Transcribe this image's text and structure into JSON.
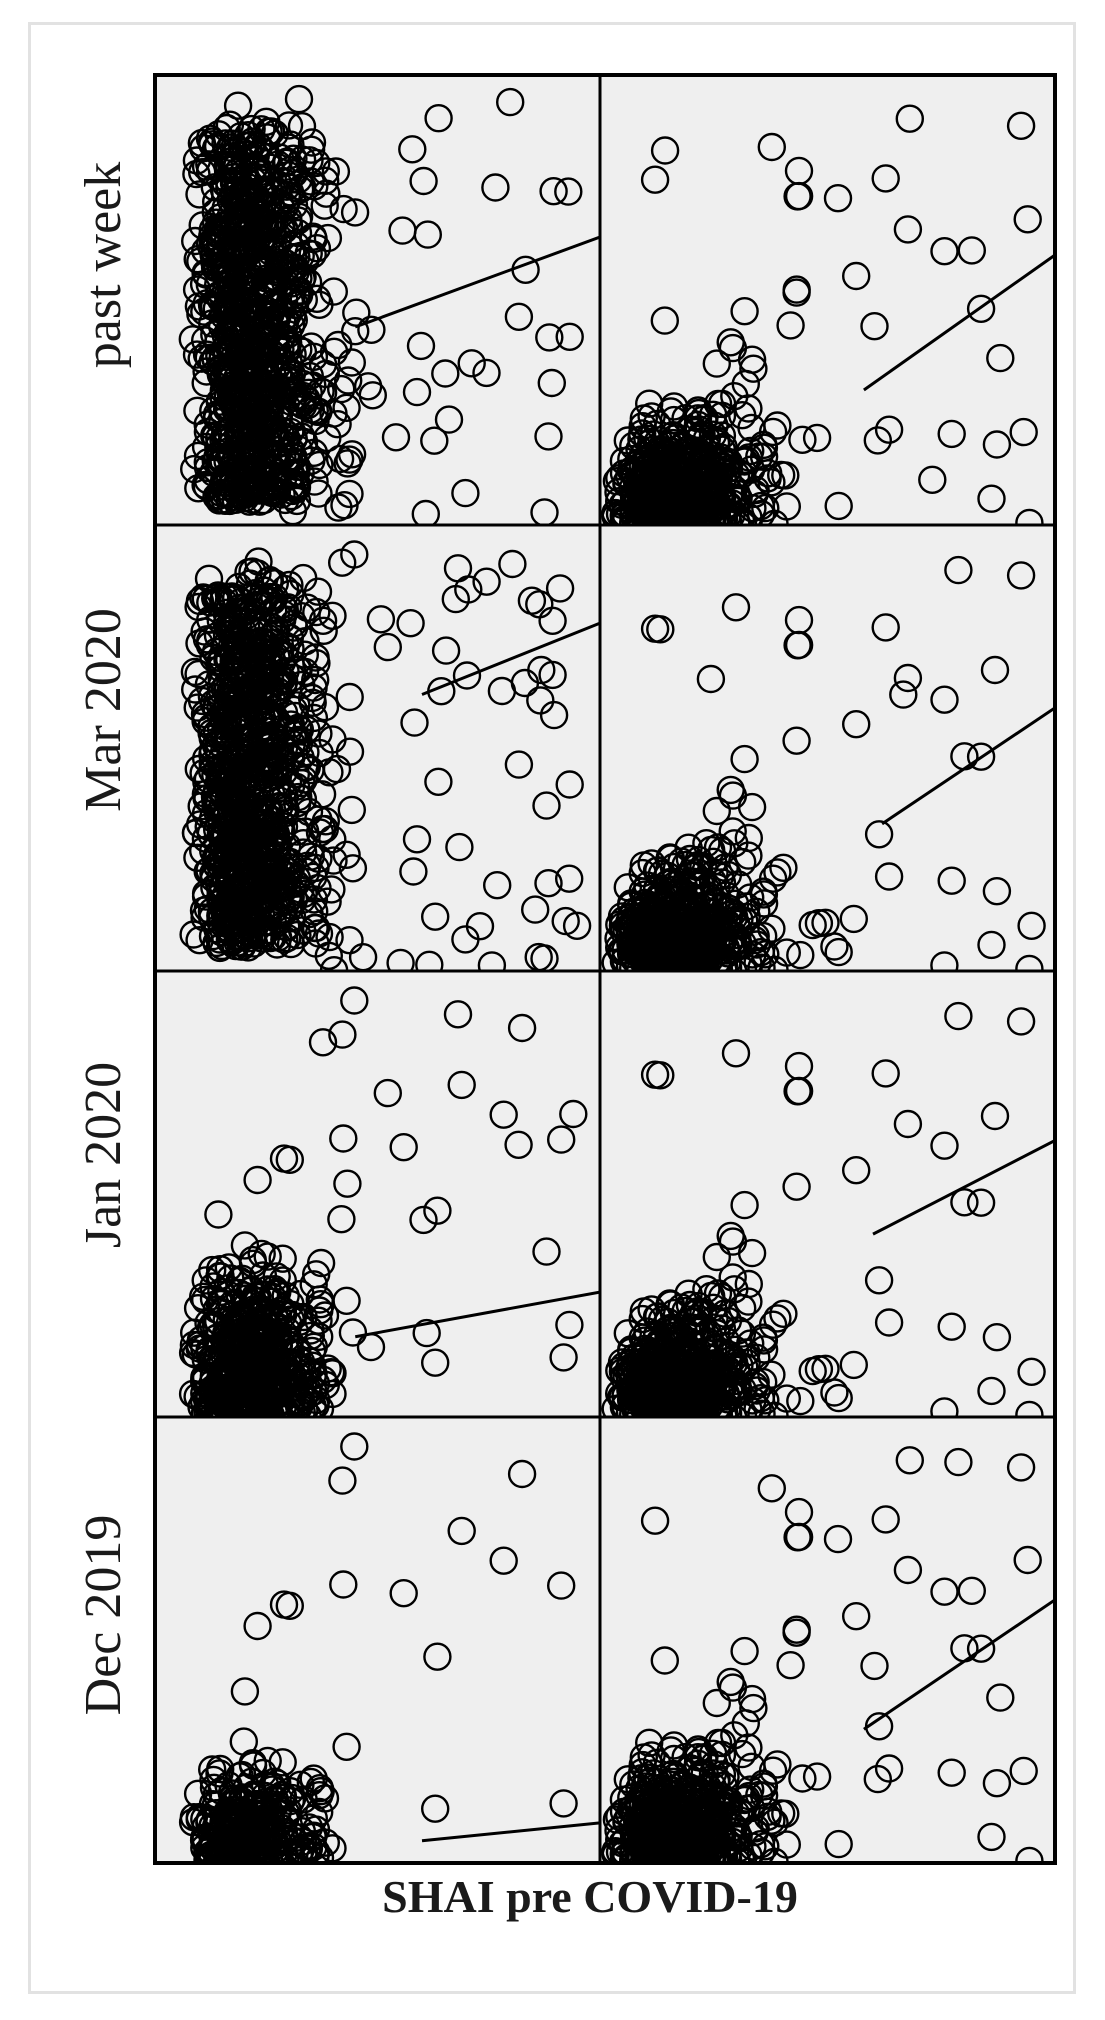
{
  "chart_data": {
    "type": "scatter",
    "xlabel": "SHAI pre COVID-19",
    "row_labels": [
      "past week",
      "Mar 2020",
      "Jan 2020",
      "Dec 2019"
    ],
    "n_columns": 2,
    "marker": "open-circle",
    "panel_background": "#efefef",
    "marker_color": "#000000",
    "panels": [
      {
        "row": "past week",
        "column": 1,
        "fit_line": [
          [
            0.45,
            0.44
          ],
          [
            1.0,
            0.64
          ]
        ],
        "density": "high"
      },
      {
        "row": "past week",
        "column": 2,
        "fit_line": [
          [
            0.58,
            0.3
          ],
          [
            1.0,
            0.6
          ]
        ],
        "density": "medium"
      },
      {
        "row": "Mar 2020",
        "column": 1,
        "fit_line": [
          [
            0.6,
            0.62
          ],
          [
            1.0,
            0.78
          ]
        ],
        "density": "high"
      },
      {
        "row": "Mar 2020",
        "column": 2,
        "fit_line": [
          [
            0.62,
            0.33
          ],
          [
            1.0,
            0.59
          ]
        ],
        "density": "medium"
      },
      {
        "row": "Jan 2020",
        "column": 1,
        "fit_line": [
          [
            0.45,
            0.18
          ],
          [
            1.0,
            0.28
          ]
        ],
        "density": "medium"
      },
      {
        "row": "Jan 2020",
        "column": 2,
        "fit_line": [
          [
            0.6,
            0.41
          ],
          [
            1.0,
            0.62
          ]
        ],
        "density": "medium"
      },
      {
        "row": "Dec 2019",
        "column": 1,
        "fit_line": [
          [
            0.6,
            0.05
          ],
          [
            1.0,
            0.09
          ]
        ],
        "density": "low"
      },
      {
        "row": "Dec 2019",
        "column": 2,
        "fit_line": [
          [
            0.58,
            0.3
          ],
          [
            1.0,
            0.59
          ]
        ],
        "density": "medium"
      }
    ]
  }
}
